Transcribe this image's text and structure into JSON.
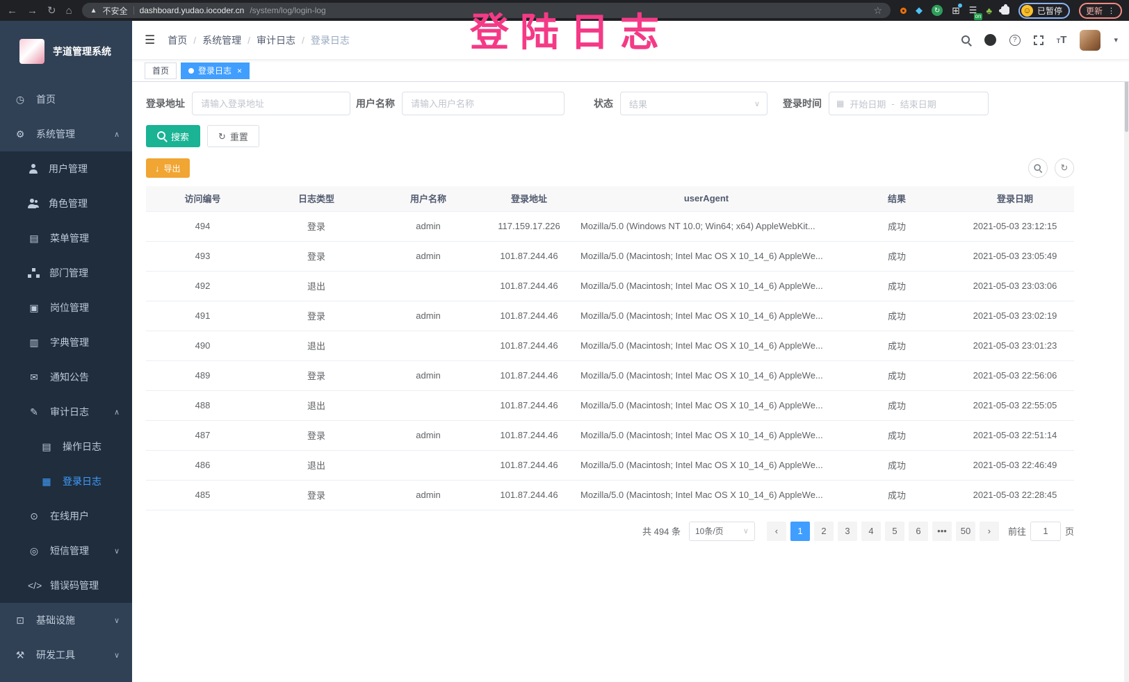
{
  "browser": {
    "security_label": "不安全",
    "url_domain": "dashboard.yudao.iocoder.cn",
    "url_path": "/system/log/login-log",
    "paused_label": "已暂停",
    "update_label": "更新",
    "extension_on_badge": "on"
  },
  "overlay_text": "登陆日志",
  "icons": {
    "back": "←",
    "forward": "→",
    "reload": "↻",
    "home": "⌂",
    "warning_triangle": "▲",
    "star": "☆",
    "diamond": "◆",
    "grid": "⊞",
    "list": "☰",
    "leaf": "♣",
    "smiley": "☺",
    "dots_vertical": "⋮",
    "hamburger": "☰",
    "question": "?",
    "font_large": "T",
    "font_small": "T",
    "caret_down": "▾",
    "chevron_up": "∧",
    "chevron_down": "∨",
    "dashboard": "◷",
    "gear": "⚙",
    "menu_table": "▤",
    "post": "▣",
    "dict": "▥",
    "notice": "✉",
    "audit": "✎",
    "operation_log": "▤",
    "login_log": "▦",
    "online": "⊙",
    "sms": "◎",
    "code": "</>",
    "infra": "⊡",
    "tools": "⚒",
    "calendar": "▦",
    "download": "↓",
    "refresh": "↻",
    "close": "×",
    "prev": "‹",
    "next": "›"
  },
  "sidebar": {
    "title": "芋道管理系统",
    "items": [
      {
        "label": "首页"
      },
      {
        "label": "系统管理"
      },
      {
        "label": "用户管理"
      },
      {
        "label": "角色管理"
      },
      {
        "label": "菜单管理"
      },
      {
        "label": "部门管理"
      },
      {
        "label": "岗位管理"
      },
      {
        "label": "字典管理"
      },
      {
        "label": "通知公告"
      },
      {
        "label": "审计日志"
      },
      {
        "label": "操作日志"
      },
      {
        "label": "登录日志"
      },
      {
        "label": "在线用户"
      },
      {
        "label": "短信管理"
      },
      {
        "label": "错误码管理"
      },
      {
        "label": "基础设施"
      },
      {
        "label": "研发工具"
      }
    ]
  },
  "breadcrumb": {
    "separator": "/",
    "items": [
      "首页",
      "系统管理",
      "审计日志",
      "登录日志"
    ]
  },
  "tags": {
    "home": "首页",
    "active": "登录日志"
  },
  "filters": {
    "login_address_label": "登录地址",
    "login_address_placeholder": "请输入登录地址",
    "username_label": "用户名称",
    "username_placeholder": "请输入用户名称",
    "status_label": "状态",
    "status_placeholder": "结果",
    "login_time_label": "登录时间",
    "date_start_placeholder": "开始日期",
    "date_separator": "-",
    "date_end_placeholder": "结束日期",
    "search_label": "搜索",
    "reset_label": "重置"
  },
  "toolbar": {
    "export_label": "导出"
  },
  "table": {
    "columns": [
      "访问编号",
      "日志类型",
      "用户名称",
      "登录地址",
      "userAgent",
      "结果",
      "登录日期"
    ],
    "rows": [
      [
        "494",
        "登录",
        "admin",
        "117.159.17.226",
        "Mozilla/5.0 (Windows NT 10.0; Win64; x64) AppleWebKit...",
        "成功",
        "2021-05-03 23:12:15"
      ],
      [
        "493",
        "登录",
        "admin",
        "101.87.244.46",
        "Mozilla/5.0 (Macintosh; Intel Mac OS X 10_14_6) AppleWe...",
        "成功",
        "2021-05-03 23:05:49"
      ],
      [
        "492",
        "退出",
        "",
        "101.87.244.46",
        "Mozilla/5.0 (Macintosh; Intel Mac OS X 10_14_6) AppleWe...",
        "成功",
        "2021-05-03 23:03:06"
      ],
      [
        "491",
        "登录",
        "admin",
        "101.87.244.46",
        "Mozilla/5.0 (Macintosh; Intel Mac OS X 10_14_6) AppleWe...",
        "成功",
        "2021-05-03 23:02:19"
      ],
      [
        "490",
        "退出",
        "",
        "101.87.244.46",
        "Mozilla/5.0 (Macintosh; Intel Mac OS X 10_14_6) AppleWe...",
        "成功",
        "2021-05-03 23:01:23"
      ],
      [
        "489",
        "登录",
        "admin",
        "101.87.244.46",
        "Mozilla/5.0 (Macintosh; Intel Mac OS X 10_14_6) AppleWe...",
        "成功",
        "2021-05-03 22:56:06"
      ],
      [
        "488",
        "退出",
        "",
        "101.87.244.46",
        "Mozilla/5.0 (Macintosh; Intel Mac OS X 10_14_6) AppleWe...",
        "成功",
        "2021-05-03 22:55:05"
      ],
      [
        "487",
        "登录",
        "admin",
        "101.87.244.46",
        "Mozilla/5.0 (Macintosh; Intel Mac OS X 10_14_6) AppleWe...",
        "成功",
        "2021-05-03 22:51:14"
      ],
      [
        "486",
        "退出",
        "",
        "101.87.244.46",
        "Mozilla/5.0 (Macintosh; Intel Mac OS X 10_14_6) AppleWe...",
        "成功",
        "2021-05-03 22:46:49"
      ],
      [
        "485",
        "登录",
        "admin",
        "101.87.244.46",
        "Mozilla/5.0 (Macintosh; Intel Mac OS X 10_14_6) AppleWe...",
        "成功",
        "2021-05-03 22:28:45"
      ]
    ]
  },
  "pagination": {
    "total": "共 494 条",
    "page_size": "10条/页",
    "pages": [
      "1",
      "2",
      "3",
      "4",
      "5",
      "6",
      "•••",
      "50"
    ],
    "active_page": "1",
    "goto_label": "前往",
    "goto_value": "1",
    "page_unit": "页"
  },
  "colors": {
    "accent_blue": "#409eff",
    "search_teal": "#1ab394",
    "export_orange": "#f1a532",
    "sidebar_bg": "#304156",
    "submenu_bg": "#1f2d3d",
    "annotation_pink": "#f43a86"
  }
}
